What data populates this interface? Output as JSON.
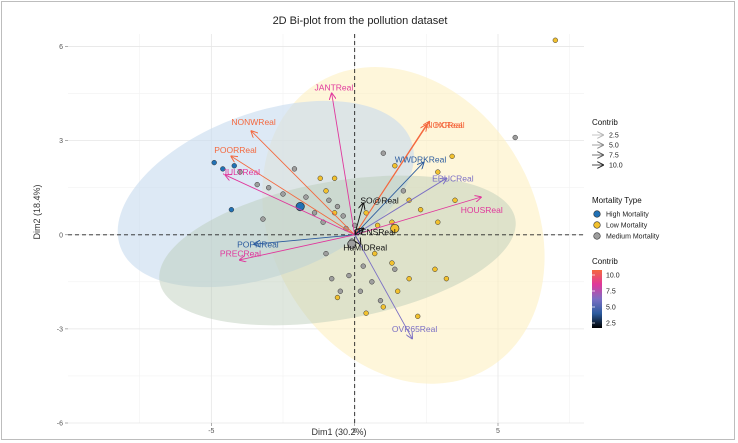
{
  "chart_data": {
    "type": "scatter",
    "title": "2D Bi-plot from the pollution dataset",
    "xlabel": "Dim1 (30.2%)",
    "ylabel": "Dim2 (18.4%)",
    "xlim": [
      -10,
      8
    ],
    "ylim": [
      -6,
      6.4
    ],
    "xticks": [
      -5,
      0,
      5
    ],
    "yticks": [
      -6,
      -3,
      0,
      3,
      6
    ],
    "grid": true,
    "legend_position": "right",
    "colors": {
      "high": "#2171b5",
      "low": "#f2c12e",
      "medium": "#9e9e9e",
      "ellipse_high": "#c6dbef",
      "ellipse_low": "#fdf0c2",
      "ellipse_medium": "#b9c9b6"
    },
    "ellipses": [
      {
        "group": "High Mortality",
        "cx": -3.1,
        "cy": 1.3,
        "rx": 5.4,
        "ry": 2.6,
        "angle_deg": -20
      },
      {
        "group": "Low Mortality",
        "cx": 1.7,
        "cy": 0.3,
        "rx": 5.8,
        "ry": 4.2,
        "angle_deg": 60
      },
      {
        "group": "Medium Mortality",
        "cx": -0.6,
        "cy": -0.5,
        "rx": 6.3,
        "ry": 2.2,
        "angle_deg": -10
      }
    ],
    "variables": [
      {
        "name": "NONWReal",
        "x": -3.6,
        "y": 3.3,
        "color": "#f4683e",
        "label_x": -4.3,
        "label_y": 3.5
      },
      {
        "name": "POORReal",
        "x": -4.3,
        "y": 2.5,
        "color": "#f4683e",
        "label_x": -4.9,
        "label_y": 2.6
      },
      {
        "name": "JULTReal",
        "x": -4.5,
        "y": 1.9,
        "color": "#e0379c",
        "label_x": -4.6,
        "label_y": 1.9
      },
      {
        "name": "JANTReal",
        "x": -0.8,
        "y": 4.5,
        "color": "#e0379c",
        "label_x": -1.4,
        "label_y": 4.6
      },
      {
        "name": "NOXReal",
        "x": 2.5,
        "y": 3.5,
        "color": "#f4683e",
        "label_x": 2.5,
        "label_y": 3.4
      },
      {
        "name": "HCReal",
        "x": 2.6,
        "y": 3.6,
        "color": "#f4683e",
        "label_x": 2.8,
        "label_y": 3.4
      },
      {
        "name": "WWDRKReal",
        "x": 2.4,
        "y": 2.3,
        "color": "#2b5b9e",
        "label_x": 1.4,
        "label_y": 2.3
      },
      {
        "name": "EDUCReal",
        "x": 3.2,
        "y": 1.8,
        "color": "#7b6fc4",
        "label_x": 2.7,
        "label_y": 1.7
      },
      {
        "name": "HOUSReal",
        "x": 4.4,
        "y": 1.2,
        "color": "#e0379c",
        "label_x": 3.7,
        "label_y": 0.7
      },
      {
        "name": "SO@Real",
        "x": 0.3,
        "y": 1.0,
        "color": "#111111",
        "label_x": 0.2,
        "label_y": 1.0
      },
      {
        "name": "DENSReal",
        "x": 0.3,
        "y": 0.2,
        "color": "#111111",
        "label_x": 0.0,
        "label_y": 0.0
      },
      {
        "name": "HuMIDReal",
        "x": 0.2,
        "y": -0.3,
        "color": "#111111",
        "label_x": -0.4,
        "label_y": -0.5
      },
      {
        "name": "POPNReal",
        "x": -3.5,
        "y": -0.3,
        "color": "#2b5b9e",
        "label_x": -4.1,
        "label_y": -0.4
      },
      {
        "name": "PRECReal",
        "x": -4.0,
        "y": -0.8,
        "color": "#e0379c",
        "label_x": -4.7,
        "label_y": -0.7
      },
      {
        "name": "OVR65Real",
        "x": 2.0,
        "y": -3.3,
        "color": "#7b6fc4",
        "label_x": 1.3,
        "label_y": -3.1
      }
    ],
    "points": [
      {
        "x": -4.9,
        "y": 2.3,
        "group": "High Mortality"
      },
      {
        "x": -4.6,
        "y": 2.1,
        "group": "High Mortality"
      },
      {
        "x": -4.2,
        "y": 2.2,
        "group": "High Mortality"
      },
      {
        "x": -4.3,
        "y": 0.8,
        "group": "High Mortality"
      },
      {
        "x": -1.9,
        "y": 0.9,
        "group": "High Mortality"
      },
      {
        "x": -4.0,
        "y": 2.0,
        "group": "Medium Mortality"
      },
      {
        "x": -3.4,
        "y": 1.6,
        "group": "Medium Mortality"
      },
      {
        "x": -3.0,
        "y": 1.5,
        "group": "Medium Mortality"
      },
      {
        "x": -2.5,
        "y": 1.3,
        "group": "Medium Mortality"
      },
      {
        "x": -2.1,
        "y": 2.1,
        "group": "Medium Mortality"
      },
      {
        "x": -1.7,
        "y": 1.2,
        "group": "Medium Mortality"
      },
      {
        "x": -1.4,
        "y": 0.7,
        "group": "Medium Mortality"
      },
      {
        "x": -1.1,
        "y": 0.4,
        "group": "Medium Mortality"
      },
      {
        "x": -0.9,
        "y": 1.1,
        "group": "Medium Mortality"
      },
      {
        "x": -0.6,
        "y": 0.9,
        "group": "Medium Mortality"
      },
      {
        "x": -0.4,
        "y": 0.6,
        "group": "Medium Mortality"
      },
      {
        "x": -0.3,
        "y": 0.2,
        "group": "Medium Mortality"
      },
      {
        "x": 0.0,
        "y": 0.3,
        "group": "Medium Mortality"
      },
      {
        "x": -1.0,
        "y": -0.6,
        "group": "Medium Mortality"
      },
      {
        "x": -0.8,
        "y": -1.4,
        "group": "Medium Mortality"
      },
      {
        "x": -0.5,
        "y": -1.8,
        "group": "Medium Mortality"
      },
      {
        "x": -0.2,
        "y": -1.3,
        "group": "Medium Mortality"
      },
      {
        "x": 0.3,
        "y": -1.0,
        "group": "Medium Mortality"
      },
      {
        "x": 0.6,
        "y": -1.5,
        "group": "Medium Mortality"
      },
      {
        "x": 0.9,
        "y": -2.1,
        "group": "Medium Mortality"
      },
      {
        "x": 0.2,
        "y": -1.8,
        "group": "Medium Mortality"
      },
      {
        "x": 1.4,
        "y": -1.1,
        "group": "Medium Mortality"
      },
      {
        "x": 1.0,
        "y": 2.6,
        "group": "Medium Mortality"
      },
      {
        "x": 1.7,
        "y": 1.4,
        "group": "Medium Mortality"
      },
      {
        "x": 5.6,
        "y": 3.1,
        "group": "Medium Mortality"
      },
      {
        "x": -0.1,
        "y": -0.2,
        "group": "Medium Mortality"
      },
      {
        "x": -3.2,
        "y": 0.5,
        "group": "Medium Mortality"
      },
      {
        "x": -1.2,
        "y": 1.8,
        "group": "Low Mortality"
      },
      {
        "x": -1.0,
        "y": 1.4,
        "group": "Low Mortality"
      },
      {
        "x": -0.7,
        "y": 1.8,
        "group": "Low Mortality"
      },
      {
        "x": -0.7,
        "y": 0.7,
        "group": "Low Mortality"
      },
      {
        "x": 0.4,
        "y": 0.7,
        "group": "Low Mortality"
      },
      {
        "x": 0.8,
        "y": 0.3,
        "group": "Low Mortality"
      },
      {
        "x": 1.3,
        "y": 0.4,
        "group": "Low Mortality"
      },
      {
        "x": 1.4,
        "y": 2.2,
        "group": "Low Mortality"
      },
      {
        "x": 1.9,
        "y": 1.1,
        "group": "Low Mortality"
      },
      {
        "x": 2.3,
        "y": 0.8,
        "group": "Low Mortality"
      },
      {
        "x": 2.9,
        "y": 2.0,
        "group": "Low Mortality"
      },
      {
        "x": 3.4,
        "y": 2.5,
        "group": "Low Mortality"
      },
      {
        "x": 3.5,
        "y": 1.1,
        "group": "Low Mortality"
      },
      {
        "x": 2.9,
        "y": 0.4,
        "group": "Low Mortality"
      },
      {
        "x": 0.7,
        "y": -0.6,
        "group": "Low Mortality"
      },
      {
        "x": 1.3,
        "y": -0.9,
        "group": "Low Mortality"
      },
      {
        "x": 1.9,
        "y": -1.4,
        "group": "Low Mortality"
      },
      {
        "x": 2.8,
        "y": -1.1,
        "group": "Low Mortality"
      },
      {
        "x": 3.2,
        "y": -1.4,
        "group": "Low Mortality"
      },
      {
        "x": 1.5,
        "y": -1.8,
        "group": "Low Mortality"
      },
      {
        "x": 1.0,
        "y": -2.3,
        "group": "Low Mortality"
      },
      {
        "x": 2.2,
        "y": -2.6,
        "group": "Low Mortality"
      },
      {
        "x": 0.4,
        "y": -2.5,
        "group": "Low Mortality"
      },
      {
        "x": -0.6,
        "y": -2.0,
        "group": "Low Mortality"
      },
      {
        "x": 7.0,
        "y": 6.2,
        "group": "Low Mortality"
      },
      {
        "x": -0.1,
        "y": -0.3,
        "group": "Low Mortality"
      }
    ],
    "barycenters": [
      {
        "group": "High Mortality",
        "x": -1.9,
        "y": 0.9
      },
      {
        "group": "Low Mortality",
        "x": 1.4,
        "y": 0.2
      },
      {
        "group": "Medium Mortality",
        "x": -0.1,
        "y": -0.3
      }
    ],
    "legend": {
      "contrib_title": "Contrib",
      "contrib_sizes": [
        "2.5",
        "5.0",
        "7.5",
        "10.0"
      ],
      "mortality_title": "Mortality Type",
      "mortality_items": [
        {
          "label": "High Mortality",
          "key": "high"
        },
        {
          "label": "Low Mortality",
          "key": "low"
        },
        {
          "label": "Medium Mortality",
          "key": "medium"
        }
      ],
      "gradient_title": "Contrib",
      "gradient_ticks": [
        "10.0",
        "7.5",
        "5.0",
        "2.5"
      ],
      "gradient_stops": [
        "#f4683e",
        "#e0379c",
        "#7b6fc4",
        "#2b5b9e",
        "#000000"
      ]
    }
  }
}
